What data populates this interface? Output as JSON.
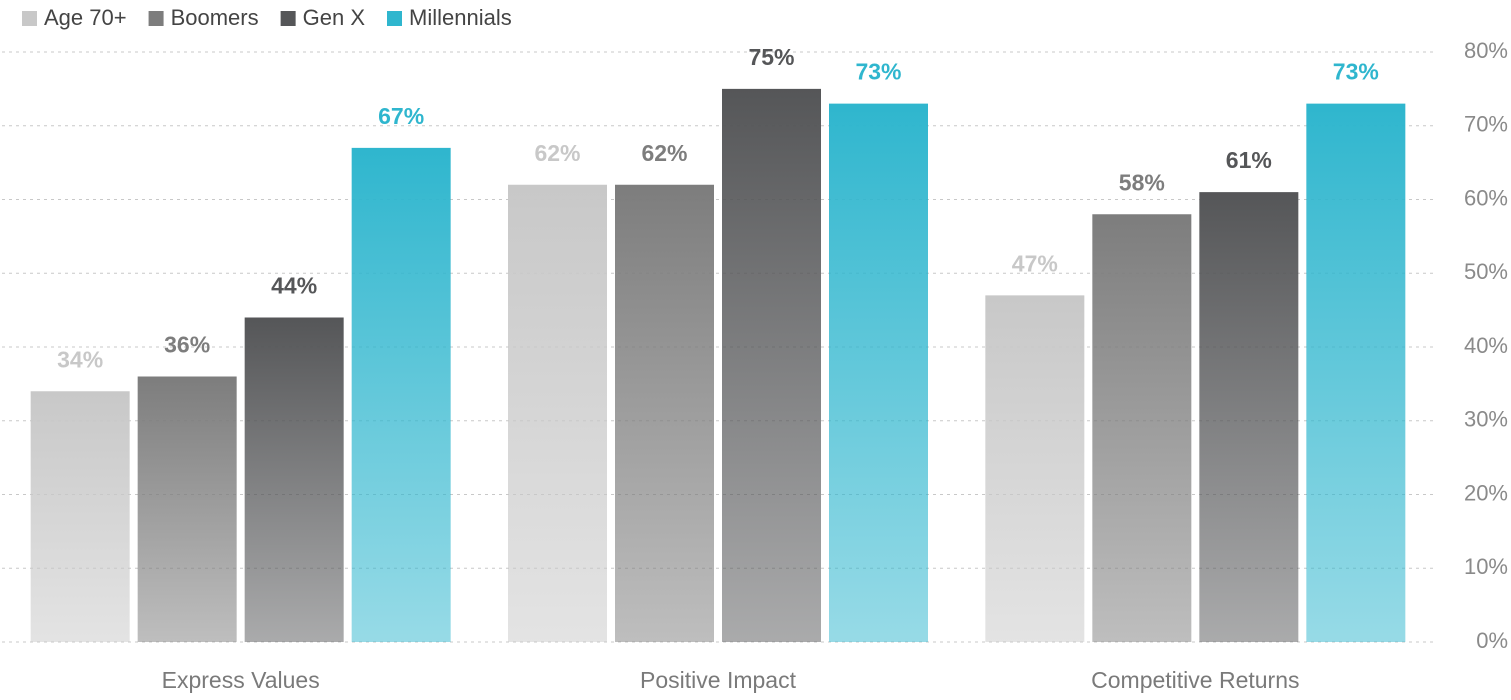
{
  "chart_data": {
    "type": "bar",
    "categories": [
      "Express Values",
      "Positive Impact",
      "Competitive Returns"
    ],
    "series": [
      {
        "name": "Age 70+",
        "color": "#c8c8c8",
        "values": [
          34,
          62,
          47
        ],
        "value_labels": [
          "34%",
          "62%",
          "47%"
        ]
      },
      {
        "name": "Boomers",
        "color": "#7d7d7d",
        "values": [
          36,
          62,
          58
        ],
        "value_labels": [
          "36%",
          "62%",
          "58%"
        ]
      },
      {
        "name": "Gen X",
        "color": "#555658",
        "values": [
          44,
          75,
          61
        ],
        "value_labels": [
          "44%",
          "75%",
          "61%"
        ]
      },
      {
        "name": "Millennials",
        "color": "#2fb6ce",
        "values": [
          67,
          73,
          73
        ],
        "value_labels": [
          "67%",
          "73%",
          "73%"
        ]
      }
    ],
    "ylim": [
      0,
      80
    ],
    "yticks": [
      {
        "value": 0,
        "label": "0%"
      },
      {
        "value": 10,
        "label": "10%"
      },
      {
        "value": 20,
        "label": "20%"
      },
      {
        "value": 30,
        "label": "30%"
      },
      {
        "value": 40,
        "label": "40%"
      },
      {
        "value": 50,
        "label": "50%"
      },
      {
        "value": 60,
        "label": "60%"
      },
      {
        "value": 70,
        "label": "70%"
      },
      {
        "value": 80,
        "label": "80%"
      }
    ],
    "grid": true,
    "legend": "top-left"
  }
}
